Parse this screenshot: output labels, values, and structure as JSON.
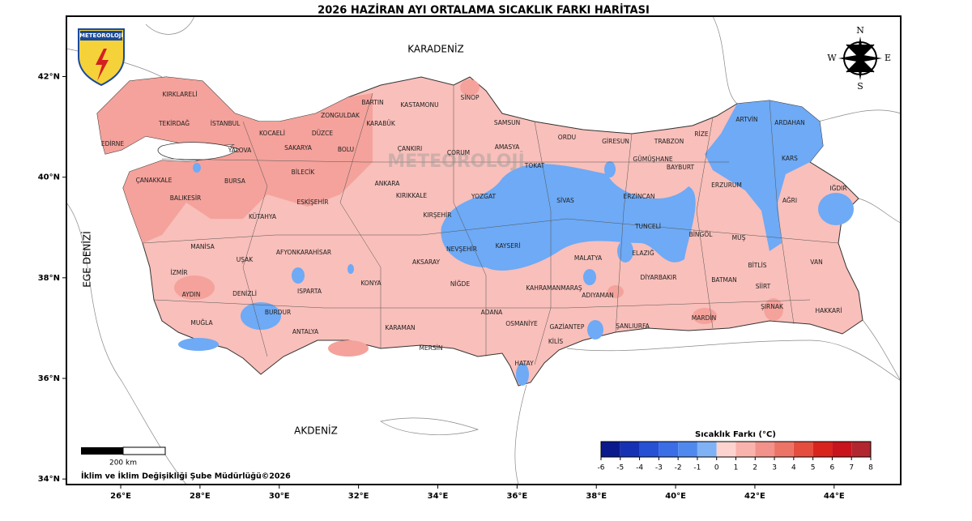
{
  "title": "2026 HAZİRAN AYI ORTALAMA SICAKLIK FARKI HARİTASI",
  "logo_text": "METEOROLOJİ",
  "watermark": "METEOROLOJİ",
  "compass": {
    "n": "N",
    "e": "E",
    "s": "S",
    "w": "W"
  },
  "seas": [
    "KARADENİZ",
    "EGE DENİZİ",
    "AKDENİZ"
  ],
  "provinces": [
    "KIRKLARELİ",
    "TEKİRDAĞ",
    "EDİRNE",
    "İSTANBUL",
    "KOCAELİ",
    "YALOVA",
    "SAKARYA",
    "DÜZCE",
    "ZONGULDAK",
    "BARTIN",
    "KASTAMONU",
    "SİNOP",
    "KARABÜK",
    "BOLU",
    "BİLECİK",
    "BURSA",
    "ÇANAKKALE",
    "BALIKESİR",
    "ESKİŞEHİR",
    "KÜTAHYA",
    "ÇANKIRI",
    "ÇORUM",
    "SAMSUN",
    "AMASYA",
    "TOKAT",
    "ORDU",
    "GİRESUN",
    "TRABZON",
    "RİZE",
    "ARTVİN",
    "ARDAHAN",
    "GÜMÜŞHANE",
    "BAYBURT",
    "KARS",
    "ERZURUM",
    "AĞRI",
    "IĞDIR",
    "ERZİNCAN",
    "SİVAS",
    "YOZGAT",
    "ANKARA",
    "KIRIKKALE",
    "KIRŞEHİR",
    "NEVŞEHİR",
    "KAYSERİ",
    "AKSARAY",
    "NİĞDE",
    "KONYA",
    "TUNCELİ",
    "BİNGÖL",
    "MUŞ",
    "ELAZIĞ",
    "MALATYA",
    "BİTLİS",
    "VAN",
    "DİYARBAKIR",
    "BATMAN",
    "SİİRT",
    "ŞIRNAK",
    "HAKKARİ",
    "MARDİN",
    "ŞANLIURFA",
    "ADIYAMAN",
    "KAHRAMANMARAŞ",
    "GAZİANTEP",
    "KİLİS",
    "OSMANİYE",
    "ADANA",
    "HATAY",
    "MERSİN",
    "KARAMAN",
    "ANTALYA",
    "BURDUR",
    "ISPARTA",
    "AFYONKARAHİSAR",
    "UŞAK",
    "DENİZLİ",
    "AYDIN",
    "MUĞLA",
    "İZMİR",
    "MANİSA"
  ],
  "map": {
    "xlim": [
      24.63,
      45.68
    ],
    "ylim": [
      33.89,
      43.2
    ],
    "lon_ticks": [
      {
        "value": 26,
        "label": "26°E"
      },
      {
        "value": 28,
        "label": "28°E"
      },
      {
        "value": 30,
        "label": "30°E"
      },
      {
        "value": 32,
        "label": "32°E"
      },
      {
        "value": 34,
        "label": "34°E"
      },
      {
        "value": 36,
        "label": "36°E"
      },
      {
        "value": 38,
        "label": "38°E"
      },
      {
        "value": 40,
        "label": "40°E"
      },
      {
        "value": 42,
        "label": "42°E"
      },
      {
        "value": 44,
        "label": "44°E"
      }
    ],
    "lat_ticks": [
      {
        "value": 42,
        "label": "42°N"
      },
      {
        "value": 40,
        "label": "40°N"
      },
      {
        "value": 38,
        "label": "38°N"
      },
      {
        "value": 36,
        "label": "36°N"
      },
      {
        "value": 34,
        "label": "34°N"
      }
    ]
  },
  "legend": {
    "title": "Sıcaklık Farkı (°C)",
    "ticks": [
      -6,
      -5,
      -4,
      -3,
      -2,
      -1,
      0,
      1,
      2,
      3,
      4,
      5,
      6,
      7,
      8
    ],
    "colors": [
      "#0a1a8c",
      "#1632b4",
      "#2651d4",
      "#3a6de6",
      "#5089ee",
      "#7fb2f5",
      "#fcd3cf",
      "#f9b3ac",
      "#f2928a",
      "#ec7467",
      "#e54d3e",
      "#d9241e",
      "#c8141c",
      "#b22630"
    ]
  },
  "scale_bar": "200 km",
  "credit": "İklim ve İklim Değişikliği Şube Müdürlüğü©2026"
}
